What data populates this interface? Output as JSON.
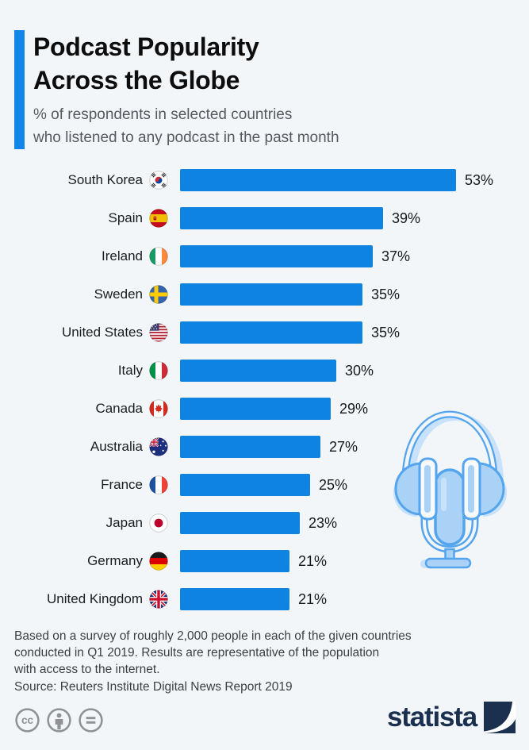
{
  "header": {
    "title_lines": [
      "Podcast Popularity",
      "Across the Globe"
    ],
    "subtitle_lines": [
      "% of respondents in selected countries",
      "who listened to any podcast in the past month"
    ],
    "accent_color": "#1286e8"
  },
  "chart_data": {
    "type": "bar",
    "orientation": "horizontal",
    "title": "Podcast Popularity Across the Globe",
    "subtitle": "% of respondents in selected countries who listened to any podcast in the past month",
    "unit": "%",
    "bar_color": "#0e83e2",
    "value_range": [
      0,
      53
    ],
    "grid": false,
    "legend": false,
    "categories": [
      "South Korea",
      "Spain",
      "Ireland",
      "Sweden",
      "United States",
      "Italy",
      "Canada",
      "Australia",
      "France",
      "Japan",
      "Germany",
      "United Kingdom"
    ],
    "values": [
      53,
      39,
      37,
      35,
      35,
      30,
      29,
      27,
      25,
      23,
      21,
      21
    ],
    "value_labels": [
      "53%",
      "39%",
      "37%",
      "35%",
      "35%",
      "30%",
      "29%",
      "27%",
      "25%",
      "23%",
      "21%",
      "21%"
    ],
    "flags": [
      "south-korea",
      "spain",
      "ireland",
      "sweden",
      "united-states",
      "italy",
      "canada",
      "australia",
      "france",
      "japan",
      "germany",
      "united-kingdom"
    ]
  },
  "illustration": "headphones-and-microphone",
  "footer": {
    "note_lines": [
      "Based on a survey of roughly 2,000 people in each of the given countries",
      "conducted in Q1 2019. Results are representative of the population",
      "with access to the internet."
    ],
    "source": "Source: Reuters Institute Digital News Report 2019",
    "license_icons": [
      "cc-icon",
      "attribution-icon",
      "no-derivatives-icon"
    ],
    "brand": "statista"
  }
}
